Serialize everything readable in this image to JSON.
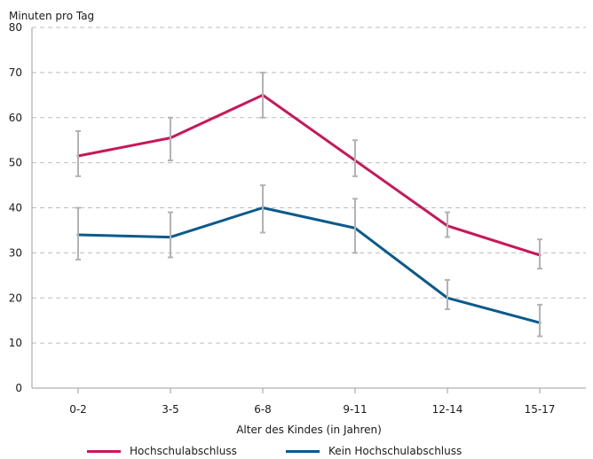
{
  "chart_data": {
    "type": "line",
    "title": "",
    "ylabel": "Minuten pro Tag",
    "xlabel": "Alter des Kindes (in Jahren)",
    "categories": [
      "0-2",
      "3-5",
      "6-8",
      "9-11",
      "12-14",
      "15-17"
    ],
    "ylim": [
      0,
      80
    ],
    "yticks": [
      0,
      10,
      20,
      30,
      40,
      50,
      60,
      70,
      80
    ],
    "grid": true,
    "legend_position": "bottom",
    "series": [
      {
        "name": "Hochschulabschluss",
        "color": "#c8175a",
        "values": [
          51.5,
          55.5,
          65,
          50.5,
          36,
          29.5
        ],
        "error_low": [
          47,
          50.5,
          60,
          47,
          33.5,
          26.5
        ],
        "error_high": [
          57,
          60,
          70,
          55,
          39,
          33
        ]
      },
      {
        "name": "Kein Hochschulabschluss",
        "color": "#0b5a8c",
        "values": [
          34,
          33.5,
          40,
          35.5,
          20,
          14.5
        ],
        "error_low": [
          28.5,
          29,
          34.5,
          30,
          17.5,
          11.5
        ],
        "error_high": [
          40,
          39,
          45,
          42,
          24,
          18.5
        ]
      }
    ],
    "errorbar_color": "#b3b3b3",
    "grid_color": "#bdbdbd"
  }
}
